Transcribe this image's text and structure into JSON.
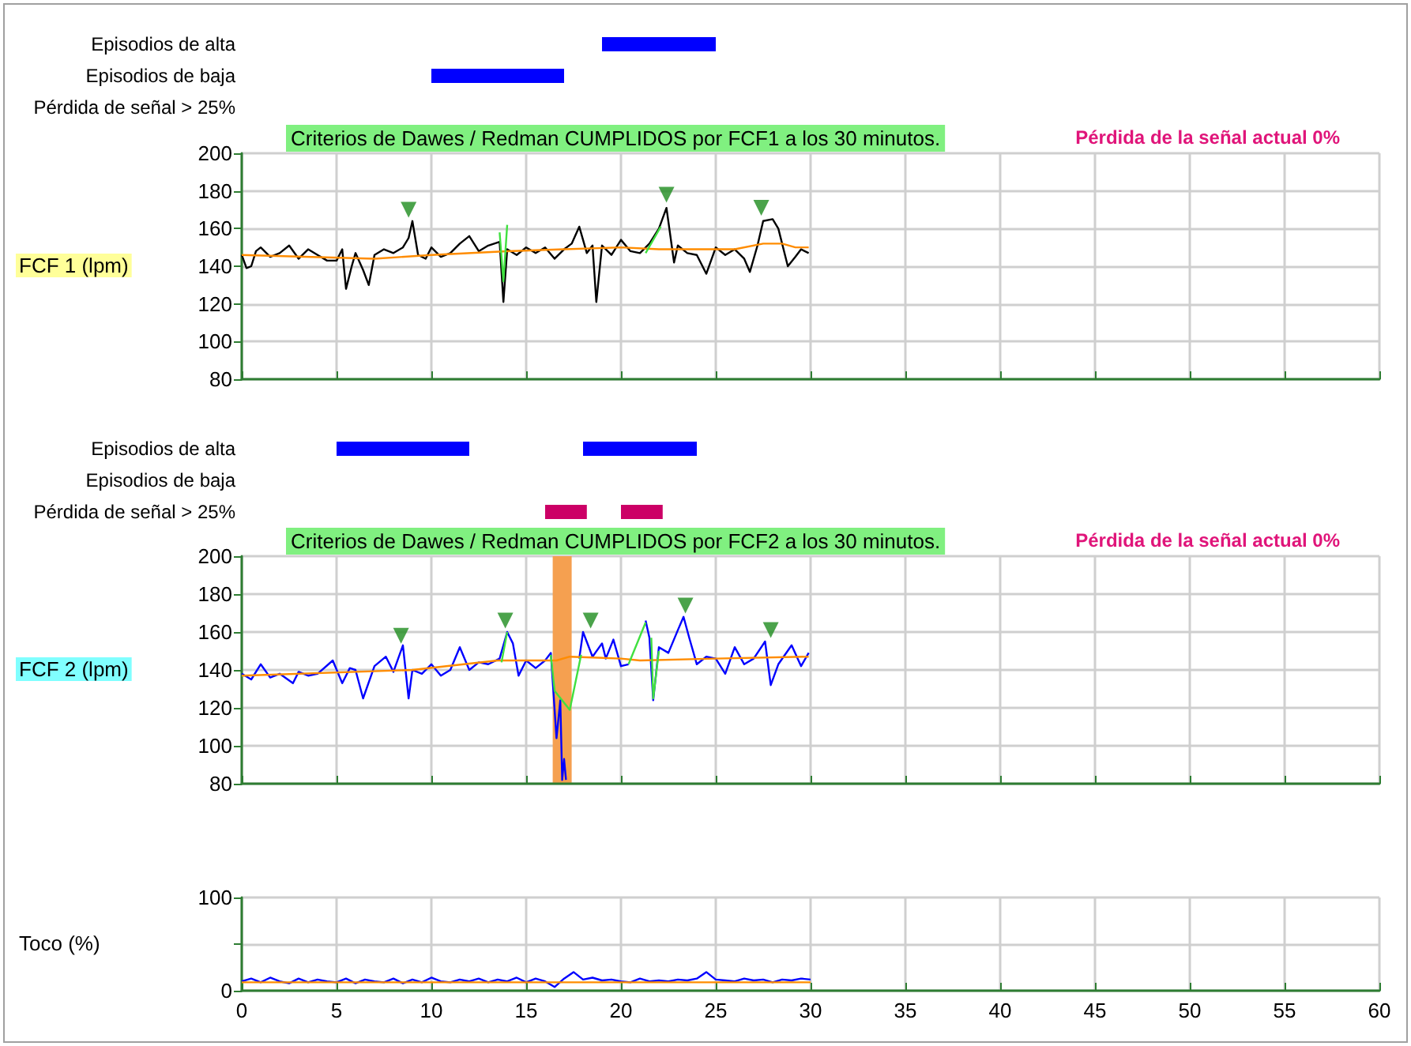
{
  "chart_data": [
    {
      "type": "bar",
      "orientation": "horizontal",
      "categories": [
        "Episodios de alta",
        "Episodios de baja",
        "Pérdida de señal > 25%"
      ],
      "xlim": [
        0,
        60
      ],
      "tick_labels": "y",
      "series": [
        {
          "base": [
            19,
            10,
            null
          ],
          "values": [
            6,
            7,
            null
          ],
          "color": "#0000ff"
        }
      ]
    },
    {
      "type": "line",
      "ylabel": "FCF 1 (lpm)",
      "annotations": [
        "Criterios de Dawes / Redman CUMPLIDOS por FCF1 a los 30 minutos.",
        "Pérdida de la señal actual 0%"
      ],
      "xlim": [
        0,
        60
      ],
      "xticks": [
        0,
        5,
        10,
        15,
        20,
        25,
        30,
        35,
        40,
        45,
        50,
        55,
        60
      ],
      "ylim": [
        80,
        200
      ],
      "yticks": [
        80,
        100,
        120,
        140,
        160,
        180,
        200
      ],
      "grid": true,
      "tick_labels": "y",
      "marker": "none",
      "series": [
        {
          "color": "#000000",
          "x": [
            0,
            0.25,
            0.5,
            0.75,
            1,
            1.5,
            2,
            2.5,
            3,
            3.5,
            4,
            4.5,
            5,
            5.3,
            5.5,
            5.8,
            6,
            6.4,
            6.7,
            7,
            7.5,
            8,
            8.5,
            8.8,
            9,
            9.3,
            9.7,
            10,
            10.5,
            11,
            11.5,
            12,
            12.5,
            13,
            13.6,
            13.8,
            14,
            14.5,
            15,
            15.5,
            16,
            16.5,
            17,
            17.4,
            17.8,
            18.2,
            18.5,
            18.7,
            19,
            19.5,
            20,
            20.5,
            21,
            21.5,
            22,
            22.4,
            22.8,
            23,
            23.5,
            24,
            24.5,
            25,
            25.5,
            26,
            26.5,
            26.8,
            27.2,
            27.5,
            28,
            28.3,
            28.8,
            29.2,
            29.5,
            29.9
          ],
          "values": [
            146,
            139,
            140,
            148,
            150,
            145,
            147,
            151,
            144,
            149,
            146,
            143,
            143,
            149,
            128,
            140,
            147,
            138,
            130,
            146,
            149,
            147,
            150,
            155,
            164,
            146,
            144,
            150,
            145,
            147,
            152,
            156,
            148,
            151,
            153,
            121,
            149,
            146,
            150,
            147,
            150,
            144,
            149,
            152,
            161,
            147,
            151,
            121,
            151,
            146,
            154,
            148,
            147,
            152,
            160,
            171,
            142,
            151,
            147,
            146,
            136,
            150,
            146,
            149,
            144,
            137,
            151,
            164,
            165,
            160,
            140,
            145,
            149,
            147
          ]
        },
        {
          "color": "#ff8c00",
          "x": [
            0,
            7,
            10,
            14,
            17,
            20,
            22,
            24,
            26,
            27.5,
            28.5,
            29.2,
            29.9
          ],
          "values": [
            146,
            144,
            146,
            148,
            149,
            150,
            149,
            149,
            149,
            152,
            152,
            150,
            150
          ]
        },
        {
          "color": "#40e040",
          "x": [
            13.6,
            13.8,
            14.0,
            17.9,
            21.3,
            22.1
          ],
          "values": [
            158,
            132,
            162,
            null,
            147,
            161
          ]
        },
        {
          "type": "scatter",
          "marker": "triangle",
          "color": "#1e8c1e",
          "x": [
            8.8,
            22.4,
            27.4
          ],
          "values": [
            170,
            178,
            171
          ]
        }
      ]
    },
    {
      "type": "bar",
      "orientation": "horizontal",
      "categories": [
        "Episodios de alta",
        "Episodios de baja",
        "Pérdida de señal > 25%"
      ],
      "xlim": [
        0,
        60
      ],
      "tick_labels": "y",
      "series": [
        {
          "base": [
            5,
            null,
            16
          ],
          "values": [
            7,
            null,
            2.2
          ],
          "colors": [
            "#0000ff",
            null,
            "#cc0066"
          ]
        },
        {
          "base": [
            18,
            null,
            20
          ],
          "values": [
            6,
            null,
            2.2
          ],
          "colors": [
            "#0000ff",
            null,
            "#cc0066"
          ]
        }
      ]
    },
    {
      "type": "line",
      "ylabel": "FCF 2 (lpm)",
      "annotations": [
        "Criterios de Dawes / Redman CUMPLIDOS por FCF2 a los 30 minutos.",
        "Pérdida de la señal actual 0%"
      ],
      "xlim": [
        0,
        60
      ],
      "xticks": [
        0,
        5,
        10,
        15,
        20,
        25,
        30,
        35,
        40,
        45,
        50,
        55,
        60
      ],
      "ylim": [
        80,
        200
      ],
      "yticks": [
        80,
        100,
        120,
        140,
        160,
        180,
        200
      ],
      "grid": true,
      "tick_labels": "y",
      "marker": "none",
      "bands": [
        {
          "axis": "x",
          "from": 16.4,
          "to": 17.4,
          "color": "#f5a050"
        }
      ],
      "series": [
        {
          "color": "#0000ff",
          "x": [
            0,
            0.5,
            1,
            1.5,
            2,
            2.7,
            3,
            3.5,
            4,
            4.8,
            5.3,
            5.7,
            6,
            6.4,
            7,
            7.6,
            8,
            8.5,
            8.8,
            9,
            9.5,
            10,
            10.5,
            11,
            11.5,
            12,
            12.5,
            13,
            13.6,
            14,
            14.3,
            14.6,
            15,
            15.5,
            16,
            16.3,
            16.6,
            16.8,
            16.9,
            17,
            17.1,
            17.4,
            17.8,
            18,
            18.5,
            19,
            19.2,
            19.6,
            20,
            20.4,
            20.8,
            21.3,
            21.5,
            21.7,
            22,
            22.5,
            23,
            23.3,
            23.6,
            24,
            24.5,
            25,
            25.5,
            26,
            26.5,
            27,
            27.6,
            27.9,
            28.3,
            29,
            29.5,
            29.9
          ],
          "values": [
            138,
            135,
            143,
            136,
            138,
            133,
            139,
            137,
            138,
            145,
            133,
            141,
            140,
            125,
            142,
            147,
            139,
            153,
            125,
            140,
            138,
            143,
            137,
            140,
            152,
            140,
            144,
            143,
            146,
            160,
            154,
            137,
            145,
            141,
            145,
            149,
            104,
            124,
            82,
            93,
            82,
            null,
            146,
            160,
            147,
            154,
            146,
            156,
            142,
            143,
            null,
            166,
            157,
            124,
            152,
            149,
            161,
            168,
            157,
            143,
            147,
            146,
            138,
            152,
            143,
            146,
            155,
            132,
            143,
            153,
            142,
            149
          ]
        },
        {
          "color": "#ff8c00",
          "x": [
            0,
            9,
            13.5,
            16.6,
            17.3,
            20,
            21,
            25,
            29.9
          ],
          "values": [
            137,
            140,
            145,
            145,
            147,
            146,
            145,
            146,
            147
          ]
        },
        {
          "color": "#40e040",
          "x": [
            13.7,
            14,
            14.5,
            16.3,
            16.5,
            17.3,
            17.9,
            19,
            20.4,
            21.3,
            21.4,
            21.6,
            21.7,
            22
          ],
          "values": [
            144,
            160,
            null,
            148,
            129,
            119,
            148,
            null,
            143,
            165,
            null,
            157,
            125,
            150
          ]
        },
        {
          "type": "scatter",
          "marker": "triangle",
          "color": "#1e8c1e",
          "x": [
            8.4,
            13.9,
            18.4,
            23.4,
            27.9
          ],
          "values": [
            158,
            166,
            166,
            174,
            161
          ]
        }
      ]
    },
    {
      "type": "line",
      "ylabel": "Toco (%)",
      "xlim": [
        0,
        60
      ],
      "xticks": [
        0,
        5,
        10,
        15,
        20,
        25,
        30,
        35,
        40,
        45,
        50,
        55,
        60
      ],
      "ylim": [
        0,
        100
      ],
      "yticks": [
        0,
        {
          "value": 50,
          "label": null
        },
        100
      ],
      "grid": true,
      "marker": "none",
      "series": [
        {
          "color": "#0000ff",
          "x": [
            0,
            0.5,
            1,
            1.5,
            2,
            2.5,
            3,
            3.5,
            4,
            4.5,
            5,
            5.5,
            6,
            6.5,
            7,
            7.5,
            8,
            8.5,
            9,
            9.5,
            10,
            10.5,
            11,
            11.5,
            12,
            12.5,
            13,
            13.5,
            14,
            14.5,
            15,
            15.5,
            16,
            16.5,
            17,
            17.5,
            18,
            18.5,
            19,
            19.5,
            20,
            20.5,
            21,
            21.5,
            22,
            22.5,
            23,
            23.5,
            24,
            24.5,
            25,
            25.5,
            26,
            26.5,
            27,
            27.5,
            28,
            28.5,
            29,
            29.5,
            30
          ],
          "values": [
            10,
            13,
            9,
            14,
            10,
            8,
            13,
            9,
            12,
            10,
            9,
            13,
            8,
            12,
            10,
            9,
            13,
            8,
            12,
            9,
            14,
            10,
            9,
            12,
            10,
            13,
            9,
            12,
            10,
            14,
            9,
            13,
            10,
            4,
            13,
            20,
            12,
            14,
            11,
            12,
            10,
            9,
            13,
            10,
            11,
            10,
            12,
            11,
            13,
            20,
            12,
            11,
            10,
            13,
            11,
            12,
            9,
            12,
            11,
            13,
            12
          ]
        },
        {
          "color": "#ff8c00",
          "x": [
            0,
            30
          ],
          "values": [
            9,
            9
          ]
        }
      ]
    }
  ]
}
